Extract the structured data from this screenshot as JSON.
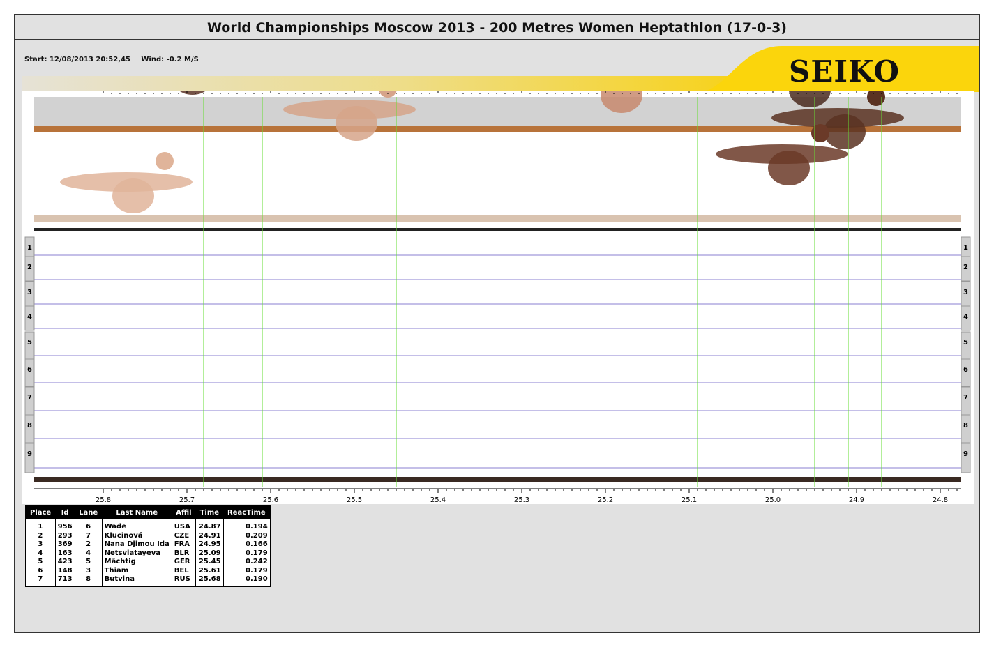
{
  "title": "World Championships Moscow 2013 - 200 Metres Women Heptathlon (17-0-3)",
  "start": "Start: 12/08/2013 20:52,45",
  "wind": "Wind: -0.2 M/S",
  "brand": "SEIKO",
  "colors": {
    "brand_yellow": "#fbd50c",
    "finish_line": "#66dd33",
    "lane_line": "#8a7fd0"
  },
  "lanes": [
    "1",
    "2",
    "3",
    "4",
    "5",
    "6",
    "7",
    "8",
    "9"
  ],
  "axis": {
    "ticks": [
      "25.8",
      "25.7",
      "25.6",
      "25.5",
      "25.4",
      "25.3",
      "25.2",
      "25.1",
      "25.0",
      "24.9",
      "24.8"
    ],
    "range": [
      25.8,
      24.8
    ]
  },
  "finish_times": [
    24.87,
    24.91,
    24.95,
    25.09,
    25.45,
    25.61,
    25.68
  ],
  "results": {
    "headers": [
      "Place",
      "Id",
      "Lane",
      "Last Name",
      "Affil",
      "Time",
      "ReacTime"
    ],
    "rows": [
      [
        "1",
        "956",
        "6",
        "Wade",
        "USA",
        "24.87",
        "0.194"
      ],
      [
        "2",
        "293",
        "7",
        "Klucinová",
        "CZE",
        "24.91",
        "0.209"
      ],
      [
        "3",
        "369",
        "2",
        "Nana Djimou Ida",
        "FRA",
        "24.95",
        "0.166"
      ],
      [
        "4",
        "163",
        "4",
        "Netsviatayeva",
        "BLR",
        "25.09",
        "0.179"
      ],
      [
        "5",
        "423",
        "5",
        "Mächtig",
        "GER",
        "25.45",
        "0.242"
      ],
      [
        "6",
        "148",
        "3",
        "Thiam",
        "BEL",
        "25.61",
        "0.179"
      ],
      [
        "7",
        "713",
        "8",
        "Butvina",
        "RUS",
        "25.68",
        "0.190"
      ]
    ]
  }
}
